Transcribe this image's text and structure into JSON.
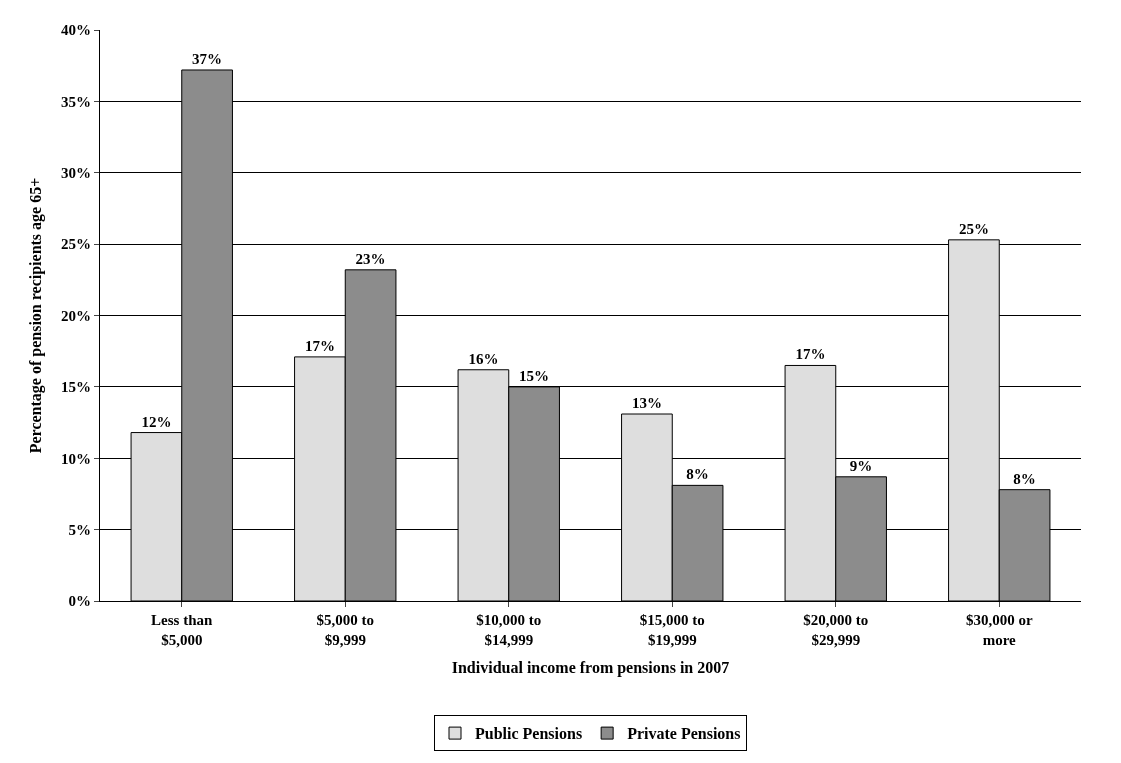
{
  "chart_data": {
    "type": "bar",
    "xlabel": "Individual income from pensions in 2007",
    "ylabel": "Percentage of pension recipients age 65+",
    "categories": [
      "Less than\n$5,000",
      "$5,000 to\n$9,999",
      "$10,000 to\n$14,999",
      "$15,000 to\n$19,999",
      "$20,000 to\n$29,999",
      "$30,000 or\nmore"
    ],
    "series": [
      {
        "name": "Public Pensions",
        "color": "#dedede",
        "values": [
          11.8,
          17.1,
          16.2,
          13.1,
          16.5,
          25.3
        ],
        "value_labels": [
          "12%",
          "17%",
          "16%",
          "13%",
          "17%",
          "25%"
        ]
      },
      {
        "name": "Private Pensions",
        "color": "#8c8c8c",
        "values": [
          37.2,
          23.2,
          15.0,
          8.1,
          8.7,
          7.8
        ],
        "value_labels": [
          "37%",
          "23%",
          "15%",
          "8%",
          "9%",
          "8%"
        ]
      }
    ],
    "ylim": [
      0,
      40
    ],
    "yticks": [
      {
        "value": 0,
        "label": "0%"
      },
      {
        "value": 5,
        "label": "5%"
      },
      {
        "value": 10,
        "label": "10%"
      },
      {
        "value": 15,
        "label": "15%"
      },
      {
        "value": 20,
        "label": "20%"
      },
      {
        "value": 25,
        "label": "25%"
      },
      {
        "value": 30,
        "label": "30%"
      },
      {
        "value": 35,
        "label": "35%"
      },
      {
        "value": 40,
        "label": "40%"
      }
    ],
    "grid": "y",
    "legend": "bottom"
  }
}
